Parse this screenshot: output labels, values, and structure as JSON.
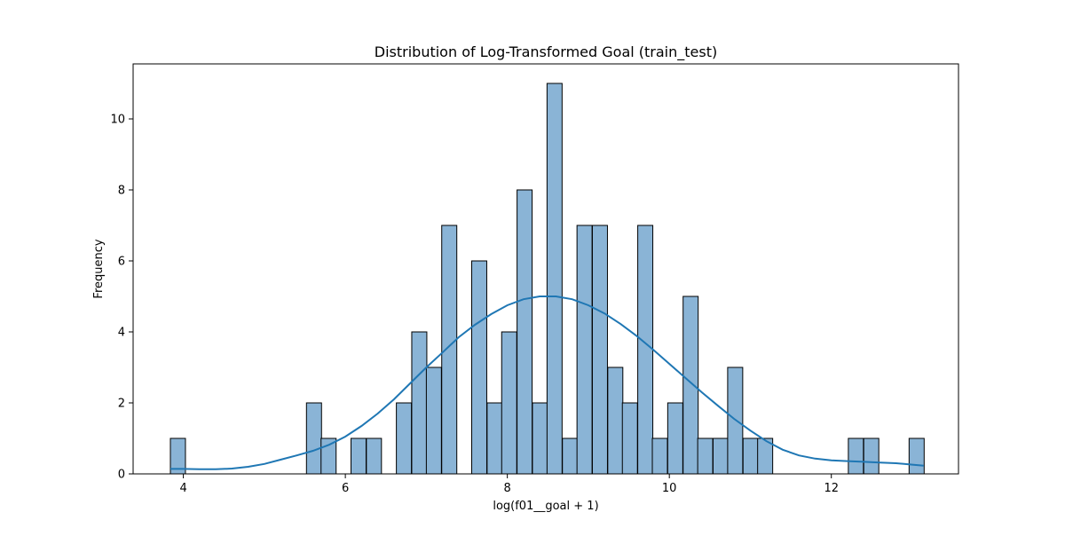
{
  "chart_data": {
    "type": "bar",
    "subtype": "histogram-with-kde",
    "title": "Distribution of Log-Transformed Goal (train_test)",
    "xlabel": "log(f01__goal + 1)",
    "ylabel": "Frequency",
    "xlim": [
      3.38,
      13.57
    ],
    "ylim": [
      0,
      11.55
    ],
    "xticks": [
      4,
      6,
      8,
      10,
      12
    ],
    "yticks": [
      0,
      2,
      4,
      6,
      8,
      10
    ],
    "grid": false,
    "bin_width": 0.186,
    "bins": [
      {
        "x0": 3.84,
        "count": 1
      },
      {
        "x0": 5.52,
        "count": 2
      },
      {
        "x0": 5.7,
        "count": 1
      },
      {
        "x0": 6.07,
        "count": 1
      },
      {
        "x0": 6.26,
        "count": 1
      },
      {
        "x0": 6.63,
        "count": 2
      },
      {
        "x0": 6.82,
        "count": 4
      },
      {
        "x0": 7.0,
        "count": 3
      },
      {
        "x0": 7.19,
        "count": 7
      },
      {
        "x0": 7.56,
        "count": 6
      },
      {
        "x0": 7.75,
        "count": 2
      },
      {
        "x0": 7.93,
        "count": 4
      },
      {
        "x0": 8.12,
        "count": 8
      },
      {
        "x0": 8.31,
        "count": 2
      },
      {
        "x0": 8.49,
        "count": 11
      },
      {
        "x0": 8.68,
        "count": 1
      },
      {
        "x0": 8.86,
        "count": 7
      },
      {
        "x0": 9.05,
        "count": 7
      },
      {
        "x0": 9.24,
        "count": 3
      },
      {
        "x0": 9.42,
        "count": 2
      },
      {
        "x0": 9.61,
        "count": 7
      },
      {
        "x0": 9.79,
        "count": 1
      },
      {
        "x0": 9.98,
        "count": 2
      },
      {
        "x0": 10.17,
        "count": 5
      },
      {
        "x0": 10.35,
        "count": 1
      },
      {
        "x0": 10.54,
        "count": 1
      },
      {
        "x0": 10.72,
        "count": 3
      },
      {
        "x0": 10.91,
        "count": 1
      },
      {
        "x0": 11.09,
        "count": 1
      },
      {
        "x0": 12.21,
        "count": 1
      },
      {
        "x0": 12.4,
        "count": 1
      },
      {
        "x0": 12.96,
        "count": 1
      }
    ],
    "kde": {
      "x": [
        3.84,
        4.0,
        4.2,
        4.4,
        4.6,
        4.8,
        5.0,
        5.2,
        5.4,
        5.6,
        5.8,
        6.0,
        6.2,
        6.4,
        6.6,
        6.8,
        7.0,
        7.2,
        7.4,
        7.6,
        7.8,
        8.0,
        8.2,
        8.4,
        8.6,
        8.8,
        9.0,
        9.2,
        9.4,
        9.6,
        9.8,
        10.0,
        10.2,
        10.4,
        10.6,
        10.8,
        11.0,
        11.2,
        11.4,
        11.6,
        11.8,
        12.0,
        12.2,
        12.4,
        12.6,
        12.8,
        13.0,
        13.14
      ],
      "y": [
        0.14,
        0.14,
        0.13,
        0.13,
        0.15,
        0.2,
        0.28,
        0.4,
        0.52,
        0.65,
        0.82,
        1.05,
        1.35,
        1.7,
        2.1,
        2.55,
        3.0,
        3.42,
        3.85,
        4.2,
        4.5,
        4.75,
        4.92,
        5.0,
        5.0,
        4.92,
        4.75,
        4.52,
        4.22,
        3.88,
        3.5,
        3.1,
        2.7,
        2.3,
        1.92,
        1.55,
        1.22,
        0.92,
        0.68,
        0.52,
        0.43,
        0.38,
        0.36,
        0.34,
        0.32,
        0.3,
        0.26,
        0.23
      ]
    },
    "colors": {
      "bar_fill": "#8ab4d6",
      "bar_edge": "#000000",
      "kde_line": "#1f77b4"
    }
  }
}
